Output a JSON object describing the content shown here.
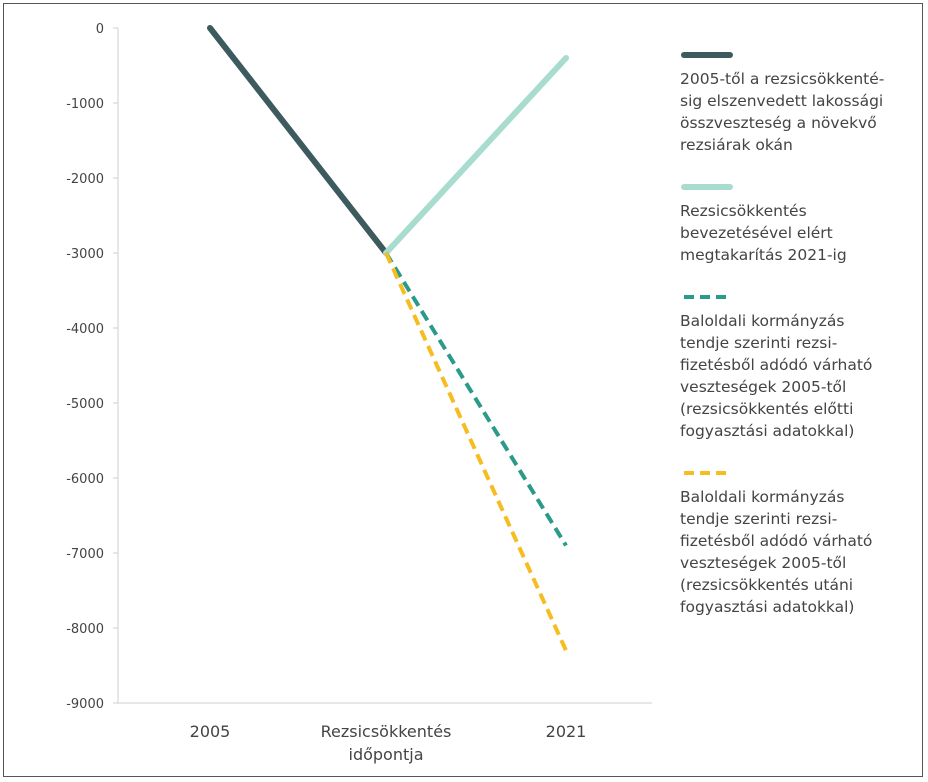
{
  "chart_data": {
    "type": "line",
    "categories": [
      "2005",
      "Rezsicsökkentés\nidőpontja",
      "2021"
    ],
    "ylim": [
      -9000,
      0
    ],
    "yticks": [
      0,
      -1000,
      -2000,
      -3000,
      -4000,
      -5000,
      -6000,
      -7000,
      -8000,
      -9000
    ],
    "grid": false,
    "legend_position": "right",
    "series": [
      {
        "name": "2005-től a rezsicsökkenté-\nsig elszenvedett lakossági\nösszveszteség a növekvő\nrezsiárak okán",
        "color": "#3d5a5f",
        "style": "solid",
        "points": [
          {
            "x": "2005",
            "y": 0
          },
          {
            "x": "Rezsicsökkentés\nidőpontja",
            "y": -3000
          }
        ]
      },
      {
        "name": "Rezsicsökkentés\nbevezetésével elért\nmegtakarítás 2021-ig",
        "color": "#a8dccf",
        "style": "solid",
        "points": [
          {
            "x": "Rezsicsökkentés\nidőpontja",
            "y": -3000
          },
          {
            "x": "2021",
            "y": -400
          }
        ]
      },
      {
        "name": "Baloldali kormányzás\ntendje szerinti rezsi-\nfizetésből adódó várható\nveszteségek 2005-től\n(rezsicsökkentés előtti\nfogyasztási adatokkal)",
        "color": "#2a9a8a",
        "style": "dashed",
        "points": [
          {
            "x": "Rezsicsökkentés\nidőpontja",
            "y": -3000
          },
          {
            "x": "2021",
            "y": -6900
          }
        ]
      },
      {
        "name": "Baloldali kormányzás\ntendje szerinti rezsi-\nfizetésből adódó várható\nveszteségek 2005-től\n(rezsicsökkentés utáni\nfogyasztási adatokkal)",
        "color": "#f5bd1f",
        "style": "dashed",
        "points": [
          {
            "x": "Rezsicsökkentés\nidőpontja",
            "y": -3000
          },
          {
            "x": "2021",
            "y": -8300
          }
        ]
      }
    ]
  }
}
